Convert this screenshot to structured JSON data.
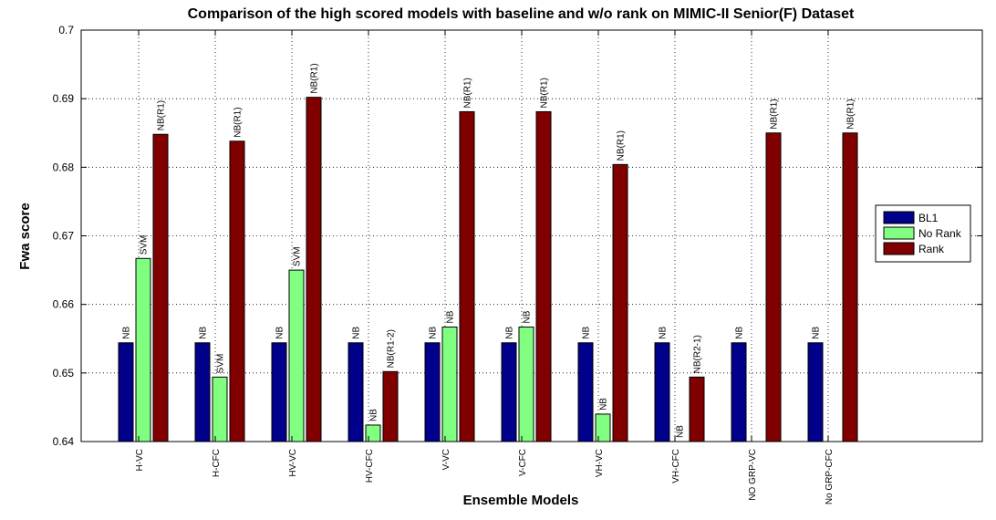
{
  "chart_data": {
    "type": "bar",
    "title": "Comparison of the high scored models with baseline and w/o rank on MIMIC-II Senior(F) Dataset",
    "xlabel": "Ensemble Models",
    "ylabel": "Fwa score",
    "ylim": [
      0.64,
      0.7
    ],
    "yticks": [
      "0.64",
      "0.65",
      "0.66",
      "0.67",
      "0.68",
      "0.69",
      "0.7"
    ],
    "grid": true,
    "legend_position": "right",
    "categories": [
      "H-VC",
      "H-CFC",
      "HV-VC",
      "HV-CFC",
      "V-VC",
      "V-CFC",
      "VH-VC",
      "VH-CFC",
      "NO GRP-VC",
      "No GRP-CFC"
    ],
    "series": [
      {
        "name": "BL1",
        "color": "#00008b",
        "values": [
          0.6544,
          0.6544,
          0.6544,
          0.6544,
          0.6544,
          0.6544,
          0.6544,
          0.6544,
          0.6544,
          0.6544
        ],
        "labels": [
          "NB",
          "NB",
          "NB",
          "NB",
          "NB",
          "NB",
          "NB",
          "NB",
          "NB",
          "NB"
        ]
      },
      {
        "name": "No Rank",
        "color": "#80ff80",
        "values": [
          0.6667,
          0.6494,
          0.665,
          0.6424,
          0.6567,
          0.6567,
          0.644,
          0.64,
          null,
          null
        ],
        "labels": [
          "SVM",
          "SVM",
          "SVM",
          "NB",
          "NB",
          "NB",
          "NB",
          "NB",
          "",
          ""
        ]
      },
      {
        "name": "Rank",
        "color": "#800000",
        "values": [
          0.6848,
          0.6838,
          0.6902,
          0.6502,
          0.6881,
          0.6881,
          0.6804,
          0.6494,
          0.685,
          0.685
        ],
        "labels": [
          "NB(R1)",
          "NB(R1)",
          "NB(R1)",
          "NB(R1-2)",
          "NB(R1)",
          "NB(R1)",
          "NB(R1)",
          "NB(R2-1)",
          "NB(R1)",
          "NB(R1)"
        ]
      }
    ]
  }
}
